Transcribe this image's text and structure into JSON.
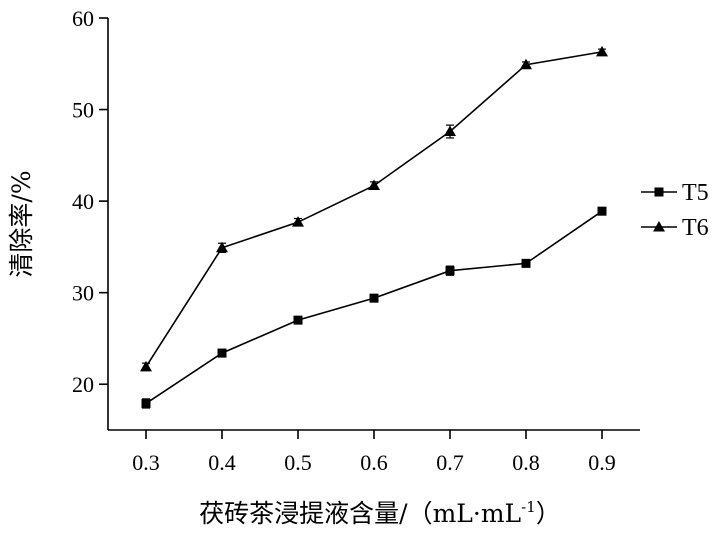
{
  "chart_data": {
    "type": "line",
    "title": "",
    "xlabel": "茯砖茶浸提液含量/（mL·mL",
    "xlabel_sup": "-1",
    "xlabel_close": "）",
    "ylabel": "清除率/%",
    "x": [
      0.3,
      0.4,
      0.5,
      0.6,
      0.7,
      0.8,
      0.9
    ],
    "x_ticks": [
      "0.3",
      "0.4",
      "0.5",
      "0.6",
      "0.7",
      "0.8",
      "0.9"
    ],
    "y_ticks": [
      "20",
      "30",
      "40",
      "50",
      "60"
    ],
    "ylim": [
      15,
      60
    ],
    "grid": false,
    "legend_position": "right",
    "series": [
      {
        "name": "T5",
        "marker": "square",
        "values": [
          17.9,
          23.4,
          27.0,
          29.4,
          32.4,
          33.2,
          38.9
        ],
        "errors": [
          0.5,
          0.4,
          0.3,
          0.3,
          0.5,
          0.3,
          0.4
        ]
      },
      {
        "name": "T6",
        "marker": "triangle",
        "values": [
          21.9,
          34.9,
          37.7,
          41.7,
          47.6,
          54.9,
          56.3
        ],
        "errors": [
          0.4,
          0.5,
          0.4,
          0.4,
          0.7,
          0.3,
          0.3
        ]
      }
    ],
    "colors": {
      "line": "#000000",
      "axis": "#000000"
    }
  }
}
